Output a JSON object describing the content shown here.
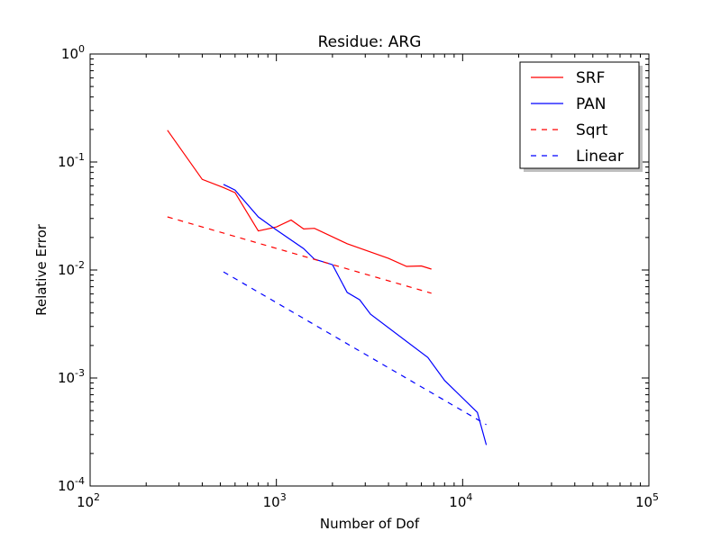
{
  "chart_data": {
    "type": "line",
    "title": "Residue: ARG",
    "xlabel": "Number of Dof",
    "ylabel": "Relative Error",
    "xscale": "log",
    "yscale": "log",
    "xlim": [
      100,
      100000
    ],
    "ylim": [
      0.0001,
      1
    ],
    "x_ticks": [
      {
        "value": 100,
        "base": "10",
        "exp": "2"
      },
      {
        "value": 1000,
        "base": "10",
        "exp": "3"
      },
      {
        "value": 10000,
        "base": "10",
        "exp": "4"
      },
      {
        "value": 100000,
        "base": "10",
        "exp": "5"
      }
    ],
    "y_ticks": [
      {
        "value": 1,
        "base": "10",
        "exp": "0"
      },
      {
        "value": 0.1,
        "base": "10",
        "exp": "-1"
      },
      {
        "value": 0.01,
        "base": "10",
        "exp": "-2"
      },
      {
        "value": 0.001,
        "base": "10",
        "exp": "-3"
      },
      {
        "value": 0.0001,
        "base": "10",
        "exp": "-4"
      }
    ],
    "legend_position": "top-right",
    "series": [
      {
        "name": "SRF",
        "color": "#ff0000",
        "style": "solid",
        "points": [
          [
            260,
            0.197
          ],
          [
            400,
            0.069
          ],
          [
            520,
            0.058
          ],
          [
            600,
            0.052
          ],
          [
            800,
            0.023
          ],
          [
            1000,
            0.025
          ],
          [
            1200,
            0.029
          ],
          [
            1400,
            0.024
          ],
          [
            1600,
            0.0243
          ],
          [
            2400,
            0.0175
          ],
          [
            4000,
            0.0128
          ],
          [
            5000,
            0.0108
          ],
          [
            6000,
            0.0109
          ],
          [
            6800,
            0.0102
          ]
        ]
      },
      {
        "name": "PAN",
        "color": "#0000ff",
        "style": "solid",
        "points": [
          [
            520,
            0.062
          ],
          [
            600,
            0.055
          ],
          [
            800,
            0.031
          ],
          [
            1000,
            0.0235
          ],
          [
            1400,
            0.0158
          ],
          [
            1600,
            0.0126
          ],
          [
            2000,
            0.0112
          ],
          [
            2400,
            0.0062
          ],
          [
            2800,
            0.0053
          ],
          [
            3200,
            0.0039
          ],
          [
            6500,
            0.00155
          ],
          [
            8000,
            0.00095
          ],
          [
            12000,
            0.00048
          ],
          [
            13400,
            0.00024
          ]
        ]
      },
      {
        "name": "Sqrt",
        "color": "#ff0000",
        "style": "dashed",
        "points": [
          [
            260,
            0.031
          ],
          [
            6800,
            0.0061
          ]
        ]
      },
      {
        "name": "Linear",
        "color": "#0000ff",
        "style": "dashed",
        "points": [
          [
            520,
            0.0096
          ],
          [
            13400,
            0.00037
          ]
        ]
      }
    ]
  }
}
